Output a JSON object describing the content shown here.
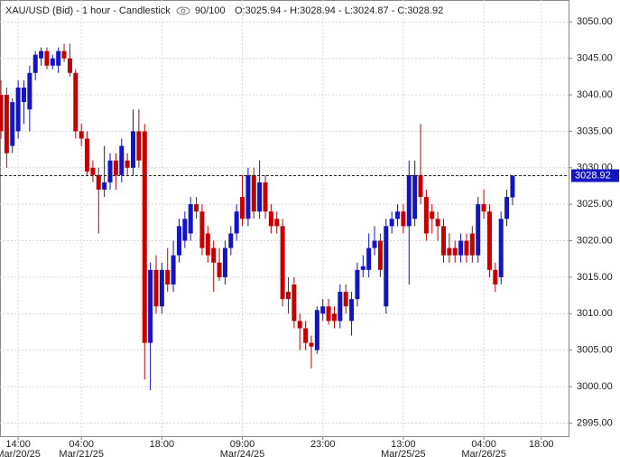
{
  "chart_data": {
    "type": "candlestick",
    "title": "XAU/USD (Bid) - 1 hour - Candlestick",
    "count_label": "90/100",
    "open_label": "O:3025.94",
    "high_label": "H:3028.94",
    "low_label": "L:3024.87",
    "close_label": "C:3028.92",
    "up_color": "#1414c4",
    "down_color": "#c40000",
    "last_price": 3028.92,
    "ylim": [
      2993.2,
      3053
    ],
    "yticks": [
      {
        "value": 2995,
        "label": "2995.00"
      },
      {
        "value": 3000,
        "label": "3000.00"
      },
      {
        "value": 3005,
        "label": "3005.00"
      },
      {
        "value": 3010,
        "label": "3010.00"
      },
      {
        "value": 3015,
        "label": "3015.00"
      },
      {
        "value": 3020,
        "label": "3020.00"
      },
      {
        "value": 3025,
        "label": "3025.00"
      },
      {
        "value": 3030,
        "label": "3030.00"
      },
      {
        "value": 3035,
        "label": "3035.00"
      },
      {
        "value": 3040,
        "label": "3040.00"
      },
      {
        "value": 3045,
        "label": "3045.00"
      },
      {
        "value": 3050,
        "label": "3050.00"
      }
    ],
    "grid": true,
    "categories": [
      null,
      null,
      null,
      {
        "time": "14:00",
        "date": "Mar/20/25"
      },
      null,
      null,
      null,
      null,
      null,
      null,
      null,
      null,
      null,
      null,
      {
        "time": "04:00",
        "date": "Mar/21/25"
      },
      null,
      null,
      null,
      null,
      null,
      null,
      null,
      null,
      null,
      null,
      null,
      null,
      null,
      {
        "time": "18:00"
      },
      null,
      null,
      null,
      null,
      null,
      null,
      null,
      null,
      null,
      null,
      null,
      null,
      null,
      {
        "time": "09:00",
        "date": "Mar/24/25"
      },
      null,
      null,
      null,
      null,
      null,
      null,
      null,
      null,
      null,
      null,
      null,
      null,
      null,
      {
        "time": "23:00"
      },
      null,
      null,
      null,
      null,
      null,
      null,
      null,
      null,
      null,
      null,
      null,
      null,
      null,
      {
        "time": "13:00",
        "date": "Mar/25/25"
      },
      null,
      null,
      null,
      null,
      null,
      null,
      null,
      null,
      null,
      null,
      null,
      null,
      null,
      {
        "time": "04:00",
        "date": "Mar/26/25"
      },
      null,
      null,
      null,
      null,
      null,
      null,
      null,
      null,
      null,
      {
        "time": "18:00"
      }
    ],
    "open": [
      3040,
      3040,
      3033,
      3035,
      3039,
      3038,
      3043,
      3045,
      3046,
      3044,
      3044,
      3046,
      3045,
      3043,
      3035,
      3034,
      3030,
      3029,
      3027,
      3028,
      3031,
      3029,
      3031,
      3030,
      3035,
      3035,
      3006,
      3016,
      3011,
      3016,
      3014,
      3018,
      3020,
      3021,
      3025,
      3024,
      3021,
      3019,
      3017,
      3015,
      3019,
      3021,
      3026,
      3023,
      3029,
      3024,
      3028,
      3024,
      3023,
      3022,
      3013,
      3014,
      3009,
      3008,
      3006,
      3005,
      3010,
      3011,
      3010,
      3009,
      3013,
      3009,
      3012,
      3016,
      3016,
      3019,
      3020,
      3011,
      3022,
      3023,
      3024,
      3022,
      3023,
      3029,
      3026,
      3024,
      3023,
      3022,
      3019,
      3019,
      3018,
      3020,
      3021,
      3018,
      3025,
      3024,
      3016,
      3015,
      3023,
      3025.94,
      null,
      null,
      null,
      null,
      null
    ],
    "high": [
      3042,
      3041,
      3039.5,
      3042,
      3042,
      3044,
      3046,
      3046.5,
      3046.5,
      3045.5,
      3046.5,
      3047,
      3047,
      3043.5,
      3036,
      3035,
      3031,
      3030,
      3033,
      3032,
      3032,
      3034,
      3032,
      3038,
      3038,
      3036,
      3017,
      3018,
      3017,
      3019,
      3020,
      3023,
      3024,
      3026,
      3026,
      3025,
      3022,
      3020,
      3019,
      3020,
      3022,
      3025,
      3029,
      3030,
      3030,
      3031,
      3029,
      3025,
      3024,
      3023,
      3015,
      3015,
      3010,
      3009,
      3007,
      3011,
      3012,
      3012,
      3011,
      3014,
      3014,
      3013,
      3017,
      3018,
      3021,
      3022,
      3021,
      3023,
      3024,
      3025,
      3025,
      3031,
      3031,
      3036,
      3027,
      3025,
      3024,
      3023,
      3021,
      3020,
      3021,
      3021,
      3022,
      3026,
      3027,
      3025,
      3017,
      3024,
      3027,
      3028.94,
      null,
      null,
      null,
      null,
      null
    ],
    "low": [
      3034,
      3030,
      3032,
      3034,
      3036,
      3035,
      3042,
      3044,
      3043.5,
      3043.5,
      3043,
      3044.5,
      3042.5,
      3034,
      3033,
      3029,
      3028,
      3021,
      3026,
      3027,
      3027,
      3028,
      3029,
      3029,
      3030,
      3001,
      2999.5,
      3010,
      3010,
      3013,
      3013,
      3017,
      3019,
      3020,
      3023,
      3018,
      3017,
      3013,
      3014.5,
      3014,
      3018,
      3020,
      3022,
      3022,
      3023,
      3023,
      3023,
      3021,
      3021,
      3011,
      3010,
      3008,
      3005,
      3005,
      3002.5,
      3004.5,
      3009,
      3008.5,
      3008,
      3008,
      3010,
      3007,
      3011,
      3015,
      3015,
      3018,
      3015,
      3010,
      3021,
      3022,
      3021,
      3014,
      3022,
      3025,
      3020,
      3021,
      3020,
      3017,
      3017,
      3017,
      3017,
      3017,
      3017,
      3017,
      3023,
      3015,
      3013,
      3014,
      3022,
      3024.87,
      null,
      null,
      null,
      null,
      null
    ],
    "close": [
      3035,
      3032,
      3039,
      3041,
      3041,
      3043,
      3045.5,
      3046,
      3044,
      3045,
      3046,
      3045,
      3043,
      3035,
      3034,
      3029.5,
      3029,
      3027,
      3028,
      3031,
      3029,
      3033,
      3030,
      3035,
      3031,
      3006,
      3016,
      3011,
      3016,
      3014,
      3018,
      3022,
      3023,
      3025,
      3024,
      3019,
      3018,
      3017,
      3015,
      3019,
      3021,
      3024,
      3023,
      3029,
      3024,
      3028,
      3024,
      3022,
      3022,
      3012,
      3012,
      3009,
      3008,
      3006,
      3005.5,
      3010.5,
      3011,
      3009,
      3009,
      3013,
      3011,
      3012,
      3016,
      3016.5,
      3019,
      3020,
      3016,
      3022,
      3023,
      3024,
      3022,
      3029,
      3029,
      3026,
      3021,
      3023,
      3022,
      3018,
      3018,
      3018,
      3020,
      3018,
      3018,
      3025,
      3024,
      3016,
      3014,
      3023,
      3026,
      3028.92,
      null,
      null,
      null,
      null,
      null
    ]
  }
}
